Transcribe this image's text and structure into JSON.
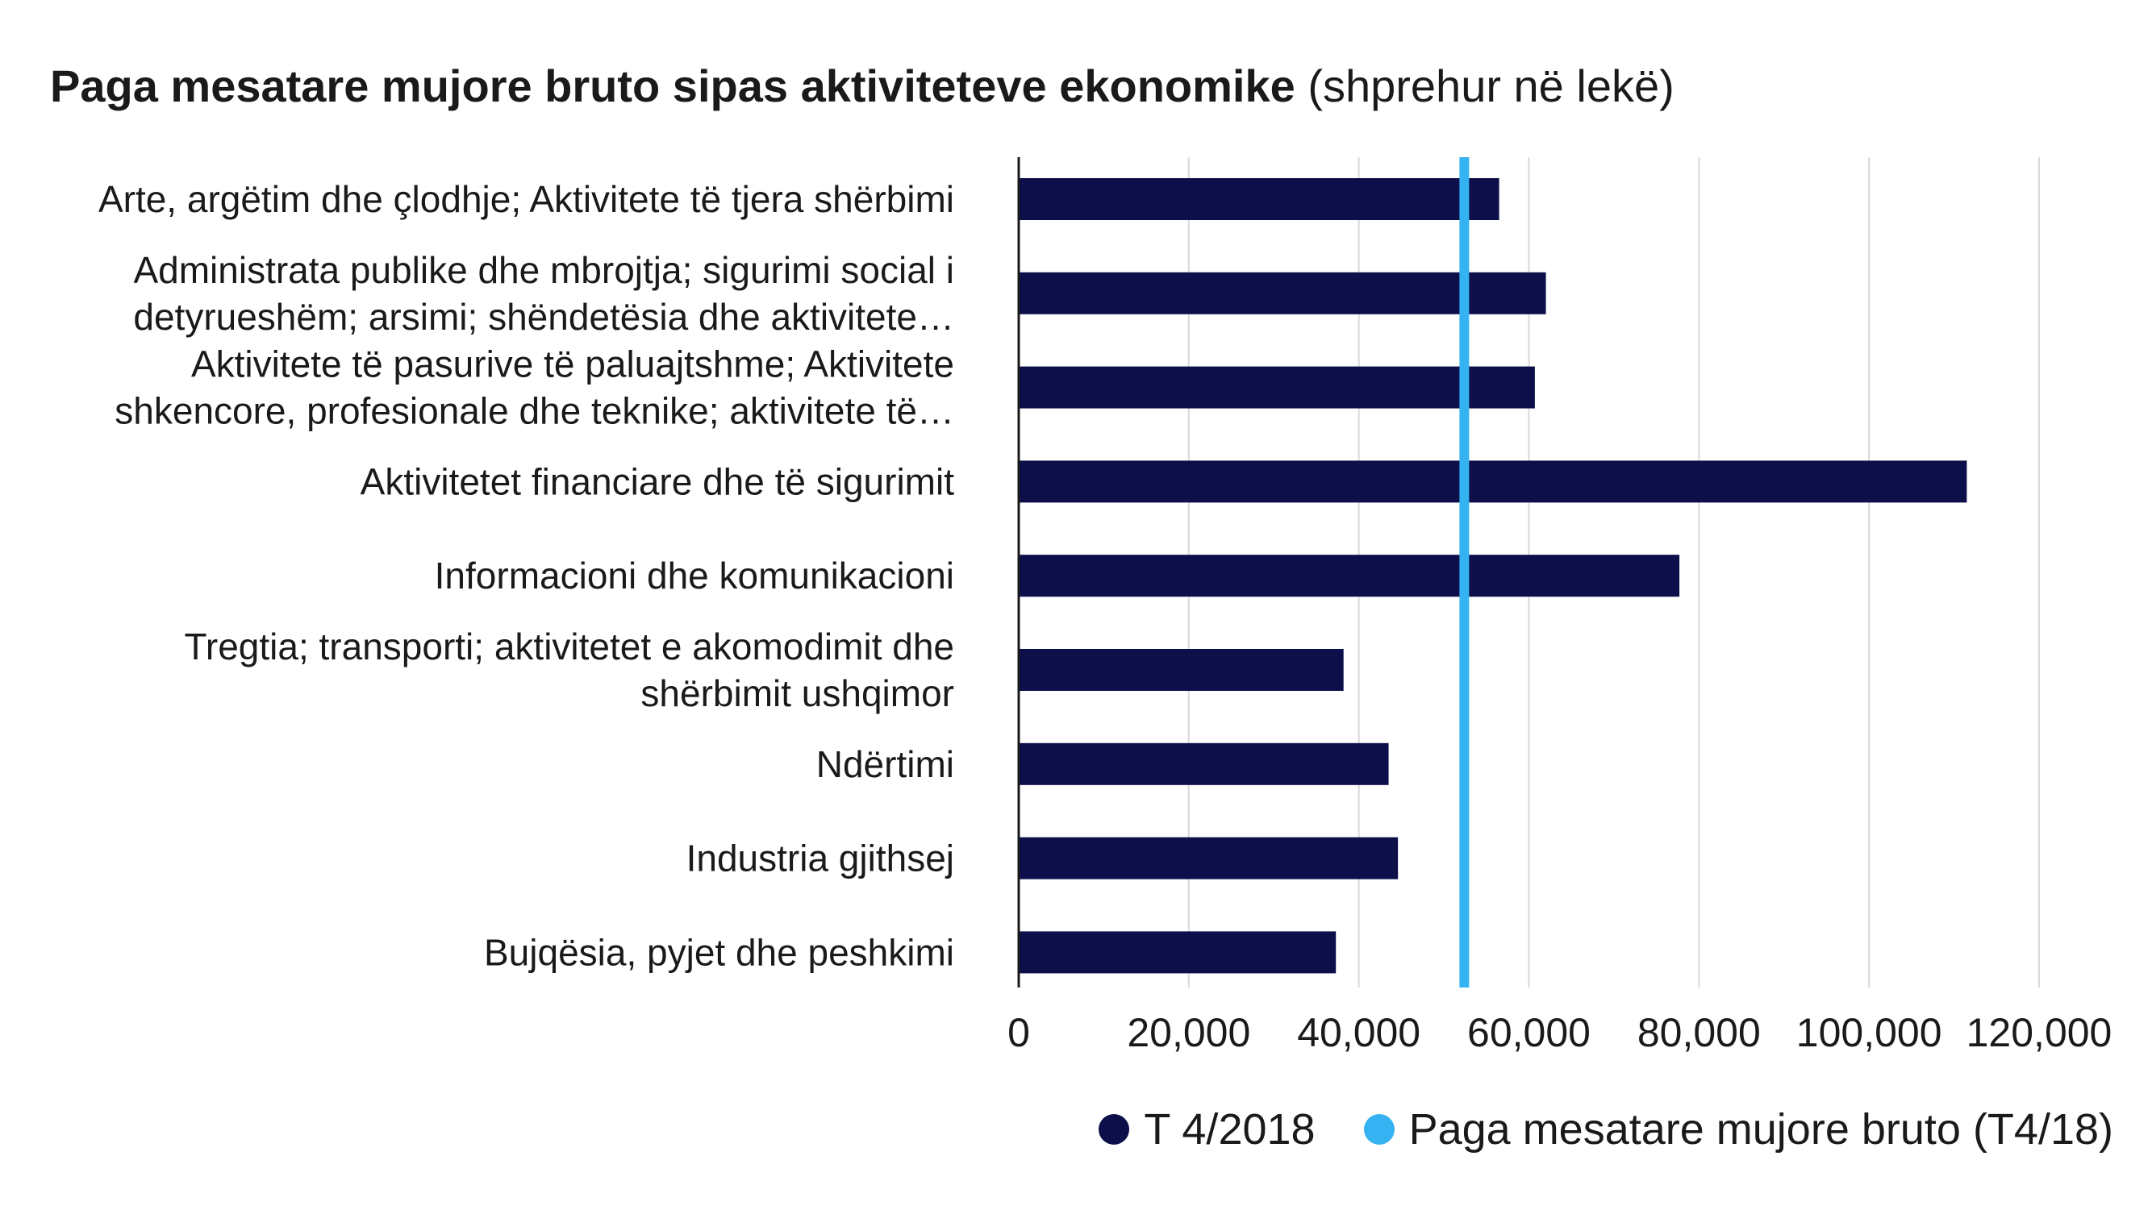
{
  "chart_data": {
    "type": "bar",
    "orientation": "horizontal",
    "title": "Paga mesatare mujore bruto sipas aktiviteteve ekonomike",
    "subtitle": "(shprehur në lekë)",
    "categories": [
      {
        "lines": [
          "Arte, argëtim dhe çlodhje; Aktivitete të tjera shërbimi"
        ]
      },
      {
        "lines": [
          "Administrata publike dhe mbrojtja; sigurimi social i",
          "detyrueshëm; arsimi; shëndetësia dhe aktivitete…"
        ]
      },
      {
        "lines": [
          "Aktivitete të pasurive të paluajtshme; Aktivitete",
          "shkencore, profesionale dhe teknike; aktivitete të…"
        ]
      },
      {
        "lines": [
          "Aktivitetet financiare dhe të sigurimit"
        ]
      },
      {
        "lines": [
          "Informacioni dhe komunikacioni"
        ]
      },
      {
        "lines": [
          "Tregtia; transporti; aktivitetet e akomodimit dhe",
          "shërbimit ushqimor"
        ]
      },
      {
        "lines": [
          "Ndërtimi"
        ]
      },
      {
        "lines": [
          "Industria gjithsej"
        ]
      },
      {
        "lines": [
          "Bujqësia, pyjet dhe peshkimi"
        ]
      }
    ],
    "series": [
      {
        "name": "T 4/2018",
        "color": "#0c0f4a",
        "values": [
          56500,
          62000,
          60700,
          111500,
          77700,
          38200,
          43500,
          44600,
          37300
        ]
      }
    ],
    "reference_line": {
      "name": "Paga mesatare mujore bruto (T4/18)",
      "value": 52400,
      "color": "#35b2f1"
    },
    "xlim": [
      0,
      120000
    ],
    "xticks": [
      0,
      20000,
      40000,
      60000,
      80000,
      100000,
      120000
    ],
    "xtick_labels": [
      "0",
      "20,000",
      "40,000",
      "60,000",
      "80,000",
      "100,000",
      "120,000"
    ],
    "grid": true,
    "legend_position": "bottom-right"
  }
}
